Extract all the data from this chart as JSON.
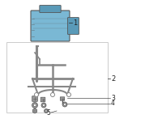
{
  "bg_color": "#ffffff",
  "border_color": "#cccccc",
  "label_color": "#222222",
  "part1_label": "1",
  "part2_label": "2",
  "part3_label": "3",
  "part4_label": "4",
  "part5_label": "5",
  "abs_unit_color": "#7ab8d4",
  "abs_unit_highlight": "#5a9ab8",
  "bracket_color": "#888888",
  "hardware_color": "#999999",
  "line_color": "#555555"
}
